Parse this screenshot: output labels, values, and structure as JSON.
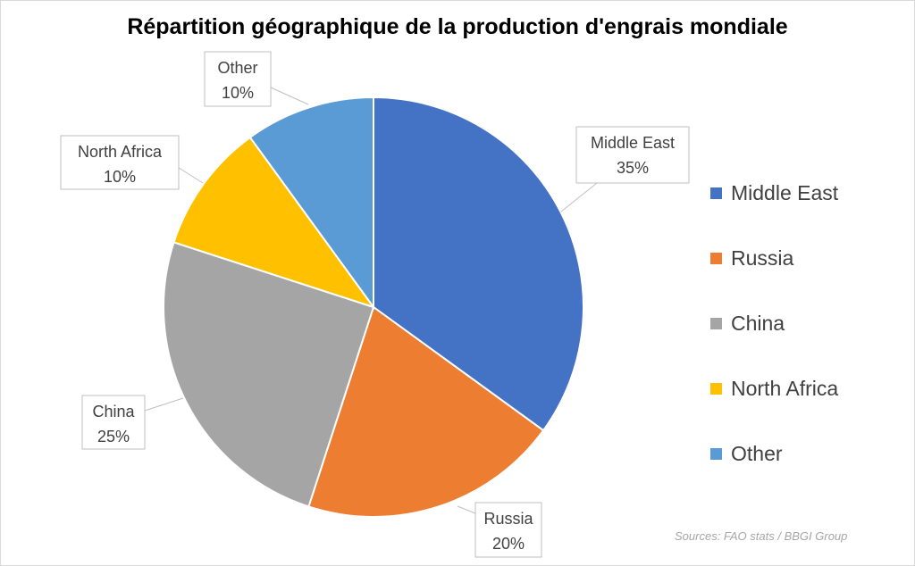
{
  "chart_data": {
    "type": "pie",
    "title": "Répartition géographique de la production d'engrais mondiale",
    "categories": [
      "Middle East",
      "Russia",
      "China",
      "North Africa",
      "Other"
    ],
    "values": [
      35,
      20,
      25,
      10,
      10
    ],
    "value_labels": [
      "35%",
      "20%",
      "25%",
      "10%",
      "10%"
    ],
    "colors": [
      "#4472C4",
      "#ED7D31",
      "#A5A5A5",
      "#FFC000",
      "#5B9BD5"
    ],
    "start_angle_deg": 0,
    "direction": "clockwise",
    "legend_position": "right",
    "source": "Sources: FAO stats / BBGI Group"
  }
}
